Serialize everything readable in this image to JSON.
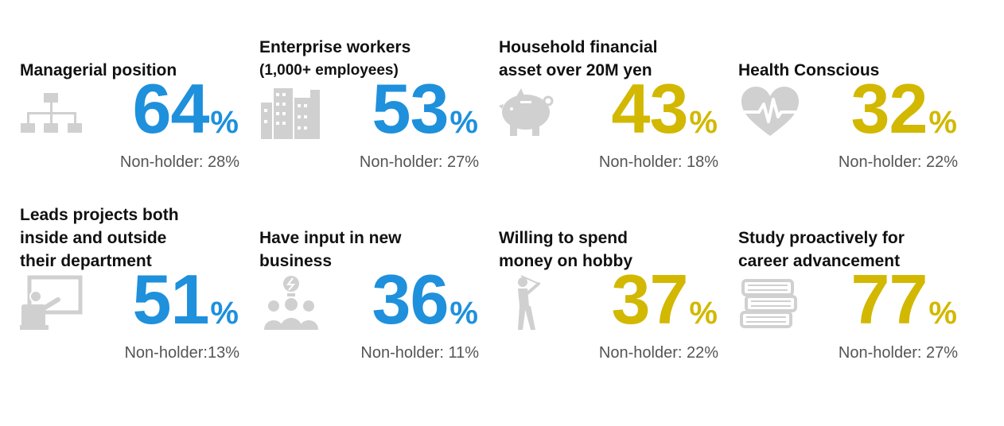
{
  "chart_data": {
    "type": "table",
    "unit": "%",
    "colors": {
      "blue": "#1E90DC",
      "gold": "#D2B800",
      "icon": "#D0D0D0"
    },
    "items": [
      {
        "title_lines": [
          "Managerial position"
        ],
        "value": 64,
        "percent_sign": "%",
        "note": "Non-holder: 28%",
        "color": "blue",
        "icon": "org-chart-icon"
      },
      {
        "title_lines": [
          "Enterprise workers",
          "(1,000+ employees)"
        ],
        "value": 53,
        "percent_sign": "%",
        "note": "Non-holder: 27%",
        "color": "blue",
        "icon": "buildings-icon"
      },
      {
        "title_lines": [
          "Household financial",
          "asset over 20M yen"
        ],
        "value": 43,
        "percent_sign": "%",
        "note": "Non-holder: 18%",
        "color": "gold",
        "icon": "piggy-bank-icon"
      },
      {
        "title_lines": [
          "Health Conscious"
        ],
        "value": 32,
        "percent_sign": "%",
        "note": "Non-holder: 22%",
        "color": "gold",
        "icon": "heart-pulse-icon"
      },
      {
        "title_lines": [
          "Leads projects both",
          "inside and outside",
          "their department"
        ],
        "value": 51,
        "percent_sign": "%",
        "note": "Non-holder:13%",
        "color": "blue",
        "icon": "presentation-icon"
      },
      {
        "title_lines": [
          "Have input in new",
          "business"
        ],
        "value": 36,
        "percent_sign": "%",
        "note": "Non-holder: 11%",
        "color": "blue",
        "icon": "team-idea-icon"
      },
      {
        "title_lines": [
          "Willing to spend",
          "money on hobby"
        ],
        "value": 37,
        "percent_sign": "%",
        "note": "Non-holder: 22%",
        "color": "gold",
        "icon": "golfer-icon"
      },
      {
        "title_lines": [
          "Study proactively for",
          "career advancement"
        ],
        "value": 77,
        "percent_sign": "%",
        "note": "Non-holder: 27%",
        "color": "gold",
        "icon": "books-icon"
      }
    ]
  }
}
